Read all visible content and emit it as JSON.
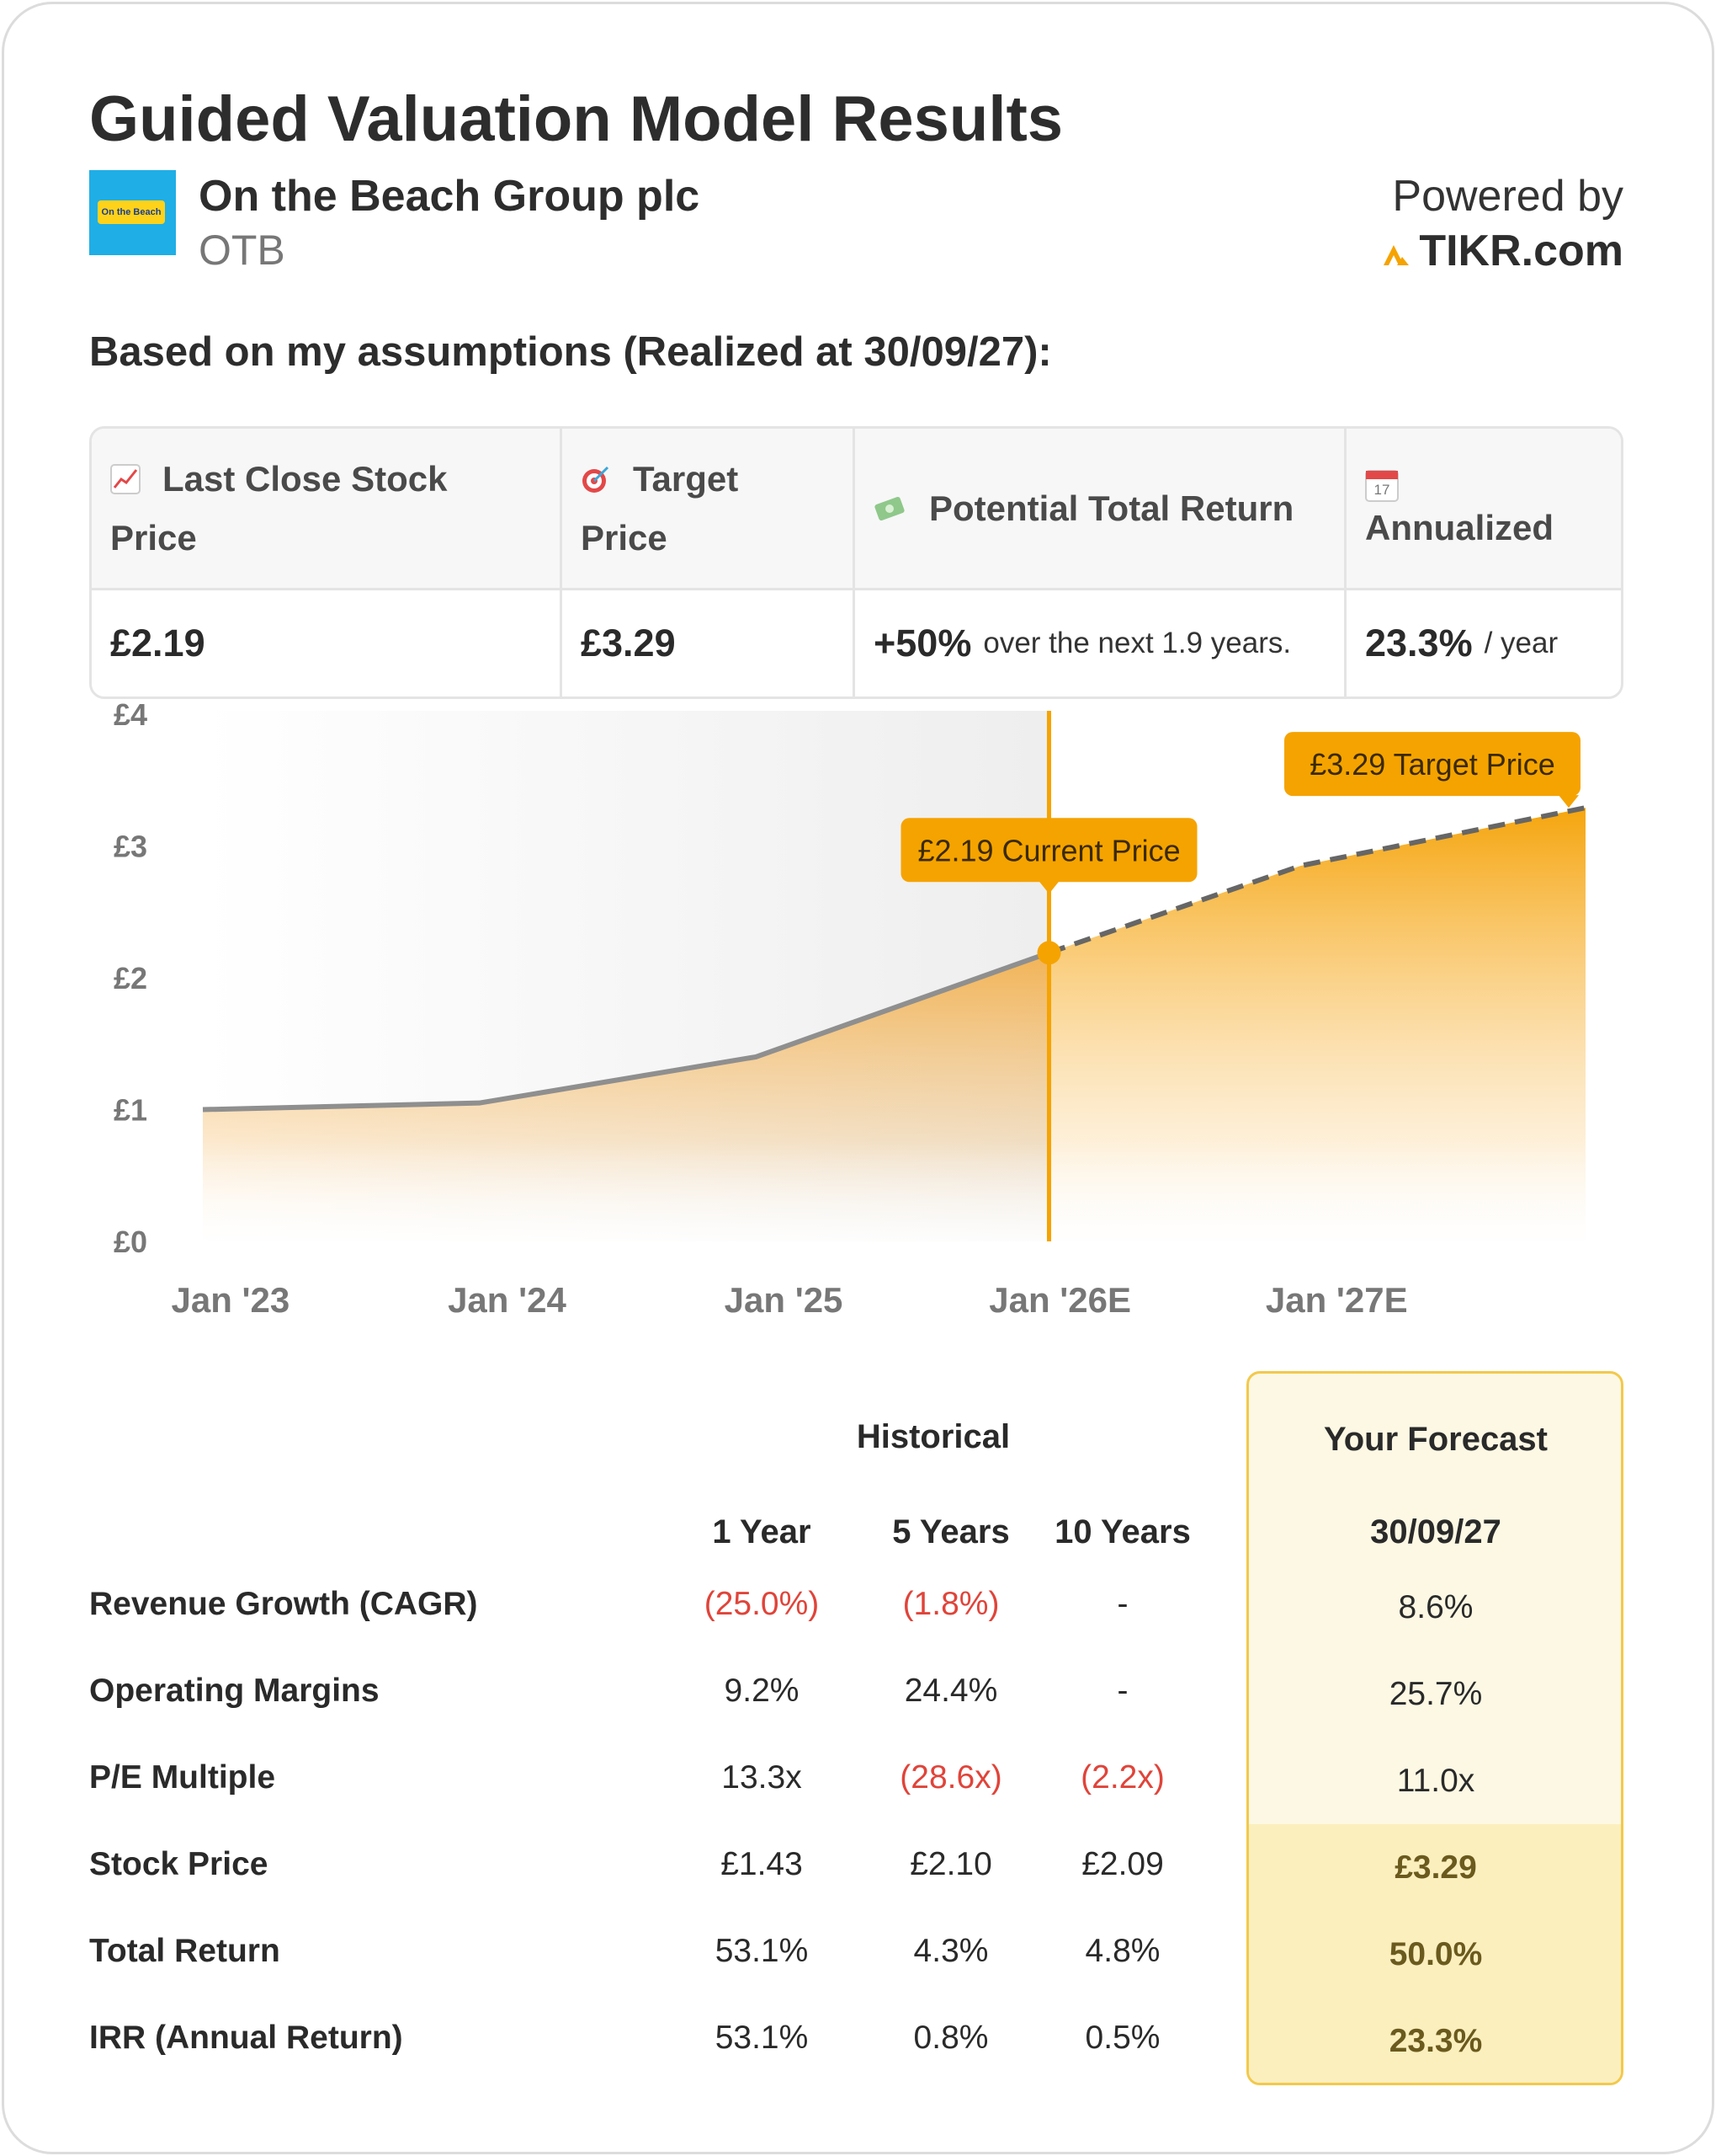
{
  "header": {
    "title": "Guided Valuation Model Results",
    "logo": "On the Beach",
    "company": "On the Beach Group plc",
    "ticker": "OTB",
    "powered_by": "Powered by",
    "brand": "TIKR.com"
  },
  "subtitle": "Based on my assumptions (Realized at 30/09/27):",
  "summary": {
    "headers": [
      "Last Close Stock Price",
      "Target Price",
      "Potential Total Return",
      "Annualized"
    ],
    "calendar_day": "17",
    "values": [
      "£2.19",
      "£3.29",
      "+50%",
      "23.3%"
    ],
    "return_note": "over the next 1.9 years.",
    "annual_note": "/ year"
  },
  "chart_data": {
    "type": "area",
    "x": [
      2022.9,
      2023.9,
      2024.9,
      2025.96,
      2026.87,
      2027.9
    ],
    "series": [
      {
        "color": "#8f8f8f",
        "values": [
          1.0,
          1.05,
          1.4,
          2.19,
          null,
          null
        ]
      },
      {
        "color": "#666666",
        "dashed": true,
        "values": [
          null,
          null,
          null,
          2.19,
          2.85,
          3.29
        ]
      }
    ],
    "xlim": [
      2022.9,
      2027.9
    ],
    "xticks": [
      {
        "value": 2023,
        "label": "Jan '23"
      },
      {
        "value": 2024,
        "label": "Jan '24"
      },
      {
        "value": 2025,
        "label": "Jan '25"
      },
      {
        "value": 2026,
        "label": "Jan '26E"
      },
      {
        "value": 2027,
        "label": "Jan '27E"
      }
    ],
    "ylim": [
      0,
      4
    ],
    "yticks": [
      {
        "value": 0,
        "label": "£0"
      },
      {
        "value": 1,
        "label": "£1"
      },
      {
        "value": 2,
        "label": "£2"
      },
      {
        "value": 3,
        "label": "£3"
      },
      {
        "value": 4,
        "label": "£4"
      }
    ],
    "accent_color": "#f5a300",
    "annotations": [
      "£2.19 Current Price",
      "£3.29 Target Price"
    ]
  },
  "table": {
    "group_headers": [
      "Historical",
      "Your Forecast"
    ],
    "columns": [
      "1 Year",
      "5 Years",
      "10 Years",
      "30/09/27"
    ],
    "rows": [
      {
        "label": "Revenue Growth (CAGR)",
        "cells": [
          "(25.0%)",
          "(1.8%)",
          "-",
          "8.6%"
        ]
      },
      {
        "label": "Operating Margins",
        "cells": [
          "9.2%",
          "24.4%",
          "-",
          "25.7%"
        ]
      },
      {
        "label": "P/E Multiple",
        "cells": [
          "13.3x",
          "(28.6x)",
          "(2.2x)",
          "11.0x"
        ]
      },
      {
        "label": "Stock Price",
        "cells": [
          "£1.43",
          "£2.10",
          "£2.09",
          "£3.29"
        ]
      },
      {
        "label": "Total Return",
        "cells": [
          "53.1%",
          "4.3%",
          "4.8%",
          "50.0%"
        ]
      },
      {
        "label": "IRR (Annual Return)",
        "cells": [
          "53.1%",
          "0.8%",
          "0.5%",
          "23.3%"
        ]
      }
    ]
  }
}
